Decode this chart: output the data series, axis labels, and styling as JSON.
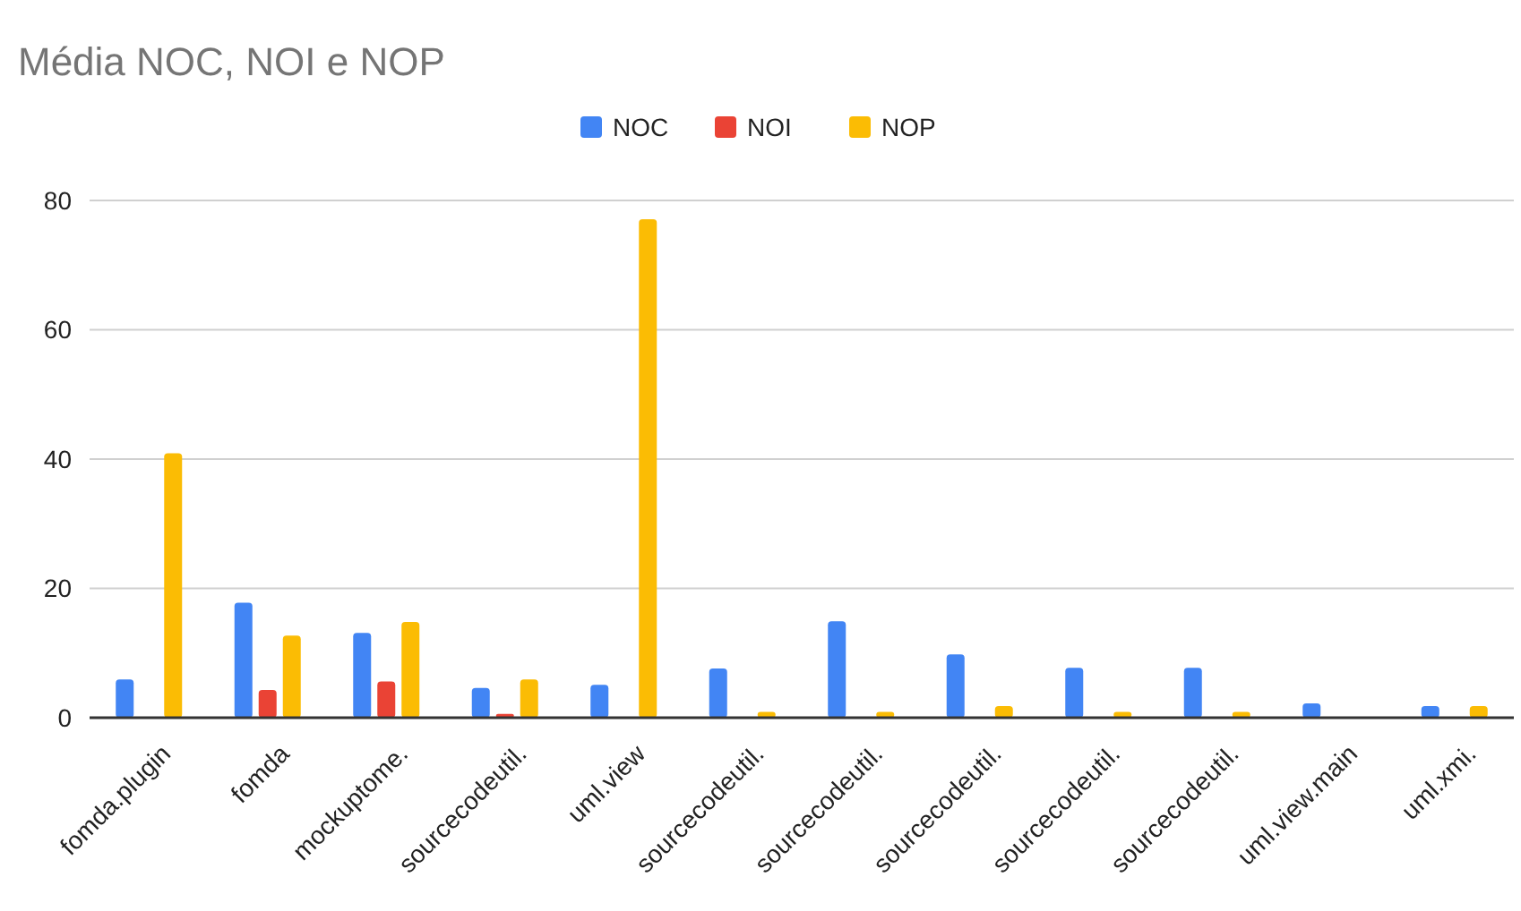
{
  "chart_data": {
    "type": "bar",
    "title": "Média NOC, NOI e NOP",
    "categories": [
      "fomda.plugin",
      "fomda",
      "mockuptome.",
      "sourcecodeutil.",
      "uml.view",
      "sourcecodeutil.",
      "sourcecodeutil.",
      "sourcecodeutil.",
      "sourcecodeutil.",
      "sourcecodeutil.",
      "uml.view.main",
      "uml.xmi."
    ],
    "series": [
      {
        "name": "NOC",
        "color": "#4285f4",
        "values": [
          5.9,
          17.8,
          13.1,
          4.6,
          5.1,
          7.6,
          14.9,
          9.8,
          7.7,
          7.7,
          2.2,
          1.8
        ]
      },
      {
        "name": "NOI",
        "color": "#ea4335",
        "values": [
          0.1,
          4.3,
          5.6,
          0.6,
          0.1,
          0,
          0,
          0,
          0,
          0,
          0,
          0
        ]
      },
      {
        "name": "NOP",
        "color": "#fbbc04",
        "values": [
          40.9,
          12.7,
          14.8,
          5.9,
          77.1,
          0.9,
          0.9,
          1.8,
          0.9,
          0.9,
          0,
          1.8
        ]
      }
    ],
    "ylim": [
      0,
      80
    ],
    "yticks": [
      0,
      20,
      40,
      60,
      80
    ],
    "grid": "y",
    "legend": "top"
  }
}
